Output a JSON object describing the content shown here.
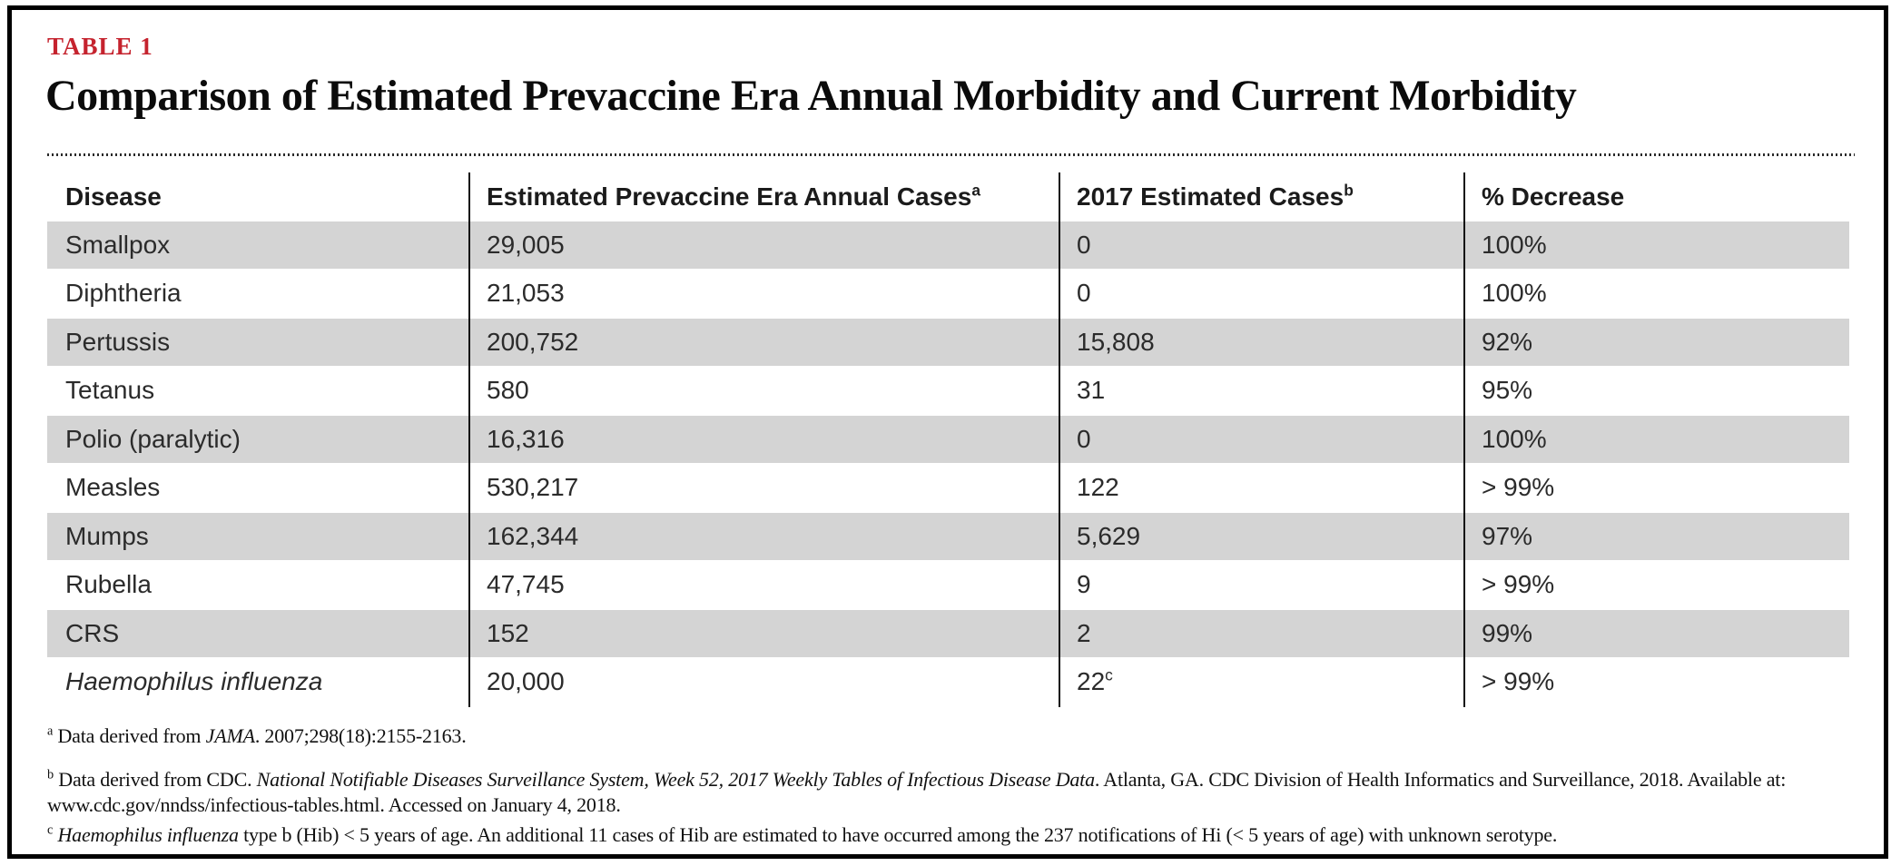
{
  "kicker": "TABLE 1",
  "title": "Comparison of Estimated Prevaccine Era Annual Morbidity and Current Morbidity",
  "colors": {
    "accent_red": "#c5232e",
    "stripe_gray": "#d4d4d4",
    "border_black": "#000000"
  },
  "table": {
    "headers": [
      {
        "label": "Disease",
        "sup": ""
      },
      {
        "label": "Estimated Prevaccine Era Annual Cases",
        "sup": "a"
      },
      {
        "label": "2017 Estimated Cases",
        "sup": "b"
      },
      {
        "label": "% Decrease",
        "sup": ""
      }
    ],
    "rows": [
      {
        "disease": "Smallpox",
        "italic": false,
        "prevaccine_cases": "29,005",
        "cases_2017": "0",
        "cases_2017_sup": "",
        "pct_decrease": "100%"
      },
      {
        "disease": "Diphtheria",
        "italic": false,
        "prevaccine_cases": "21,053",
        "cases_2017": "0",
        "cases_2017_sup": "",
        "pct_decrease": "100%"
      },
      {
        "disease": "Pertussis",
        "italic": false,
        "prevaccine_cases": "200,752",
        "cases_2017": "15,808",
        "cases_2017_sup": "",
        "pct_decrease": "92%"
      },
      {
        "disease": "Tetanus",
        "italic": false,
        "prevaccine_cases": "580",
        "cases_2017": "31",
        "cases_2017_sup": "",
        "pct_decrease": "95%"
      },
      {
        "disease": "Polio (paralytic)",
        "italic": false,
        "prevaccine_cases": "16,316",
        "cases_2017": "0",
        "cases_2017_sup": "",
        "pct_decrease": "100%"
      },
      {
        "disease": "Measles",
        "italic": false,
        "prevaccine_cases": "530,217",
        "cases_2017": "122",
        "cases_2017_sup": "",
        "pct_decrease": "> 99%"
      },
      {
        "disease": "Mumps",
        "italic": false,
        "prevaccine_cases": "162,344",
        "cases_2017": "5,629",
        "cases_2017_sup": "",
        "pct_decrease": "97%"
      },
      {
        "disease": "Rubella",
        "italic": false,
        "prevaccine_cases": "47,745",
        "cases_2017": "9",
        "cases_2017_sup": "",
        "pct_decrease": "> 99%"
      },
      {
        "disease": "CRS",
        "italic": false,
        "prevaccine_cases": "152",
        "cases_2017": "2",
        "cases_2017_sup": "",
        "pct_decrease": "99%"
      },
      {
        "disease": "Haemophilus influenza",
        "italic": true,
        "prevaccine_cases": "20,000",
        "cases_2017": "22",
        "cases_2017_sup": "c",
        "pct_decrease": "> 99%"
      }
    ]
  },
  "footnotes": [
    {
      "marker": "a",
      "segments": [
        {
          "text": "Data derived from ",
          "italic": false
        },
        {
          "text": "JAMA",
          "italic": true
        },
        {
          "text": ". 2007;298(18):2155-2163.",
          "italic": false
        }
      ]
    },
    {
      "marker": "b",
      "segments": [
        {
          "text": "Data derived from CDC. ",
          "italic": false
        },
        {
          "text": "National Notifiable Diseases Surveillance System, Week 52, 2017 Weekly Tables of Infectious Disease Data",
          "italic": true
        },
        {
          "text": ". Atlanta, GA. CDC Division of Health Informatics and Surveillance, 2018. Available at: www.cdc.gov/nndss/infectious-tables.html. Accessed on January 4, 2018.",
          "italic": false
        }
      ]
    },
    {
      "marker": "c",
      "segments": [
        {
          "text": "Haemophilus influenza",
          "italic": true
        },
        {
          "text": " type b (Hib) < 5 years of age. An additional 11 cases of Hib are estimated to have occurred among the 237 notifications of Hi (< 5 years of age) with unknown serotype.",
          "italic": false
        }
      ]
    }
  ]
}
